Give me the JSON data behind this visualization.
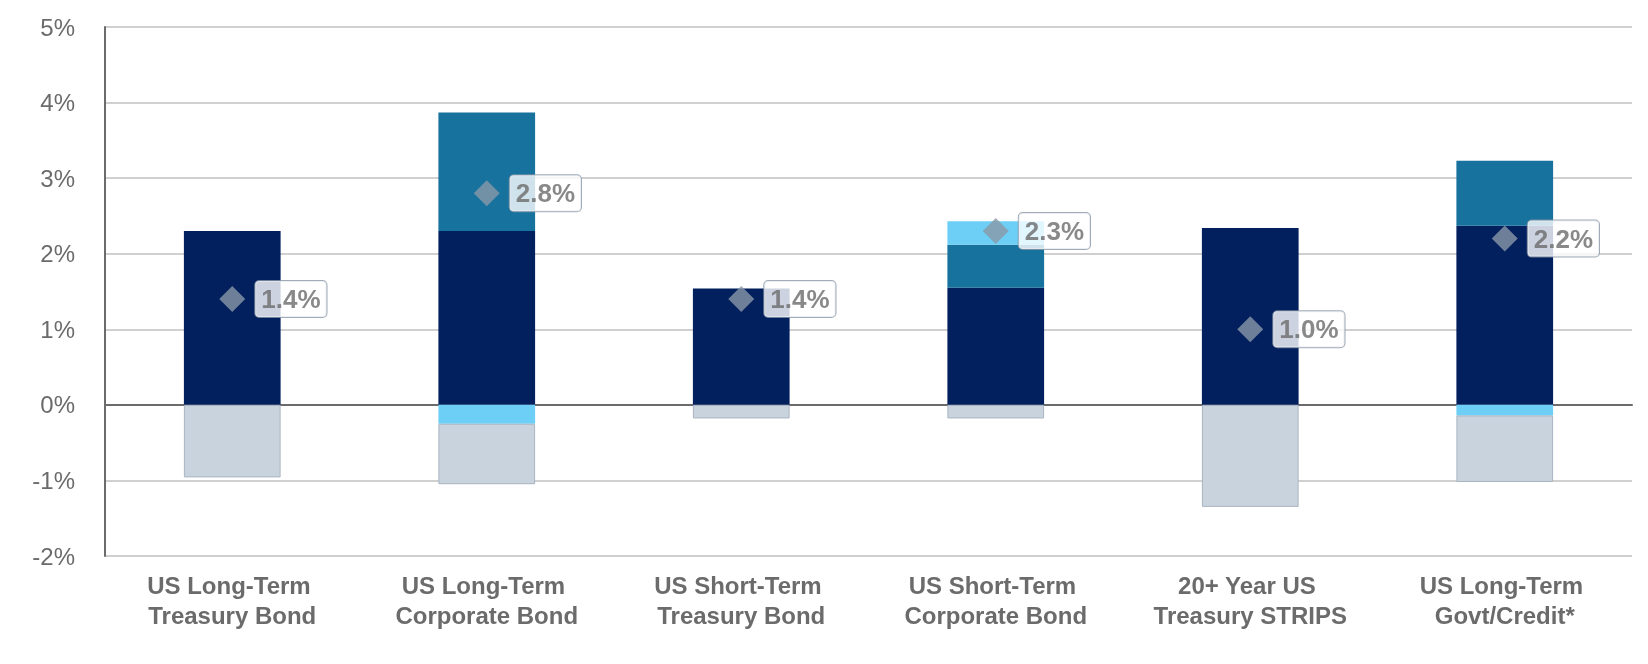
{
  "chart_data": {
    "type": "bar",
    "stacked": true,
    "categories": [
      "US Long-Term Treasury Bond",
      "US Long-Term Corporate Bond",
      "US Short-Term Treasury Bond",
      "US Short-Term Corporate Bond",
      "20+ Year US Treasury STRIPS",
      "US Long-Term Govt/Credit*"
    ],
    "series": [
      {
        "color": "#021f5e",
        "values": [
          2.3,
          2.3,
          1.54,
          1.55,
          2.34,
          2.37
        ]
      },
      {
        "color": "#17729e",
        "values": [
          null,
          1.57,
          null,
          0.57,
          null,
          0.86
        ]
      },
      {
        "color": "#6dcff6",
        "values": [
          null,
          -0.25,
          null,
          0.31,
          null,
          -0.14
        ]
      },
      {
        "color": "#c9d3de",
        "values": [
          -0.96,
          -0.8,
          -0.18,
          -0.18,
          -1.35,
          -0.88
        ]
      },
      {
        "type": "scatter",
        "color": "#8a97a8",
        "marker": "diamond",
        "x": [
          "US Long-Term Treasury Bond",
          "US Long-Term Corporate Bond",
          "US Short-Term Treasury Bond",
          "US Short-Term Corporate Bond",
          "20+ Year US Treasury STRIPS",
          "US Long-Term Govt/Credit*"
        ],
        "values": [
          1.4,
          2.8,
          1.4,
          2.3,
          1.0,
          2.2
        ],
        "value_labels": [
          "1.4%",
          "2.8%",
          "1.4%",
          "2.3%",
          "1.0%",
          "2.2%"
        ]
      }
    ],
    "ylim": [
      -2,
      5
    ],
    "yticks": [
      {
        "value": -2,
        "label": "-2%"
      },
      {
        "value": -1,
        "label": "-1%"
      },
      {
        "value": 0,
        "label": "0%"
      },
      {
        "value": 1,
        "label": "1%"
      },
      {
        "value": 2,
        "label": "2%"
      },
      {
        "value": 3,
        "label": "3%"
      },
      {
        "value": 4,
        "label": "4%"
      },
      {
        "value": 5,
        "label": "5%"
      }
    ],
    "grid": "y"
  }
}
